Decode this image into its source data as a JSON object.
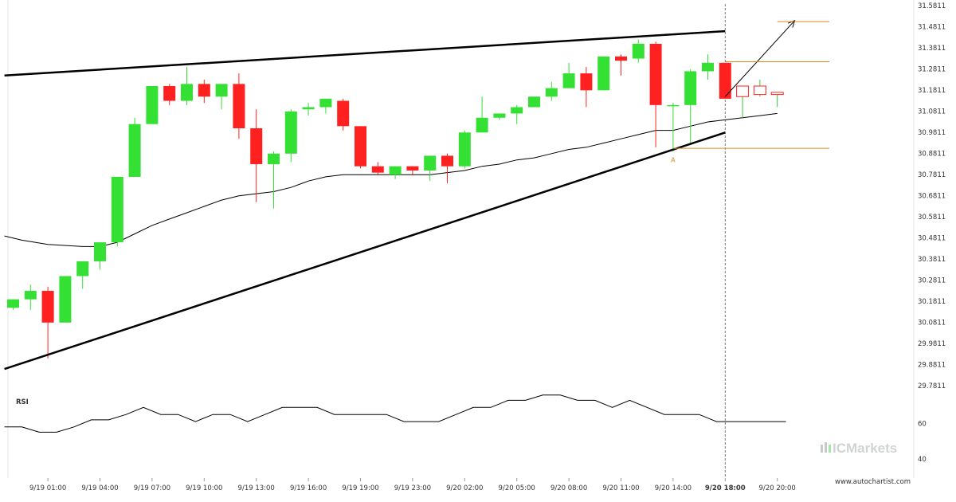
{
  "chart_data": {
    "type": "candlestick",
    "y_axis": {
      "ticks": [
        "31.5811",
        "31.4811",
        "31.3811",
        "31.2811",
        "31.1811",
        "31.0811",
        "30.9811",
        "30.8811",
        "30.7811",
        "30.6811",
        "30.5811",
        "30.4811",
        "30.3811",
        "30.2811",
        "30.1811",
        "30.0811",
        "29.9811",
        "29.8811",
        "29.7811"
      ],
      "ylim": [
        29.7811,
        31.5811
      ]
    },
    "x_axis": {
      "ticks": [
        {
          "i": 2,
          "label": "9/19 01:00"
        },
        {
          "i": 5,
          "label": "9/19 04:00"
        },
        {
          "i": 8,
          "label": "9/19 07:00"
        },
        {
          "i": 11,
          "label": "9/19 10:00"
        },
        {
          "i": 14,
          "label": "9/19 13:00"
        },
        {
          "i": 17,
          "label": "9/19 16:00"
        },
        {
          "i": 20,
          "label": "9/19 19:00"
        },
        {
          "i": 23,
          "label": "9/19 23:00"
        },
        {
          "i": 26,
          "label": "9/20 02:00"
        },
        {
          "i": 29,
          "label": "9/20 05:00"
        },
        {
          "i": 32,
          "label": "9/20 08:00"
        },
        {
          "i": 35,
          "label": "9/20 11:00"
        },
        {
          "i": 38,
          "label": "9/20 14:00"
        },
        {
          "i": 41,
          "label": "9/20 18:00",
          "bold": true
        },
        {
          "i": 44,
          "label": "9/20 20:00"
        }
      ]
    },
    "candles": [
      {
        "o": 30.15,
        "h": 30.19,
        "l": 30.14,
        "c": 30.19
      },
      {
        "o": 30.19,
        "h": 30.26,
        "l": 30.14,
        "c": 30.23
      },
      {
        "o": 30.23,
        "h": 30.25,
        "l": 29.91,
        "c": 30.08
      },
      {
        "o": 30.08,
        "h": 30.3,
        "l": 30.08,
        "c": 30.3
      },
      {
        "o": 30.3,
        "h": 30.37,
        "l": 30.24,
        "c": 30.37
      },
      {
        "o": 30.37,
        "h": 30.46,
        "l": 30.33,
        "c": 30.46
      },
      {
        "o": 30.46,
        "h": 30.77,
        "l": 30.44,
        "c": 30.77
      },
      {
        "o": 30.77,
        "h": 31.05,
        "l": 30.77,
        "c": 31.02
      },
      {
        "o": 31.02,
        "h": 31.2,
        "l": 31.02,
        "c": 31.2
      },
      {
        "o": 31.2,
        "h": 31.21,
        "l": 31.11,
        "c": 31.13
      },
      {
        "o": 31.13,
        "h": 31.29,
        "l": 31.11,
        "c": 31.21
      },
      {
        "o": 31.21,
        "h": 31.23,
        "l": 31.12,
        "c": 31.15
      },
      {
        "o": 31.15,
        "h": 31.21,
        "l": 31.09,
        "c": 31.21
      },
      {
        "o": 31.21,
        "h": 31.26,
        "l": 30.95,
        "c": 31.0
      },
      {
        "o": 31.0,
        "h": 31.09,
        "l": 30.65,
        "c": 30.83
      },
      {
        "o": 30.83,
        "h": 30.89,
        "l": 30.62,
        "c": 30.88
      },
      {
        "o": 30.88,
        "h": 31.09,
        "l": 30.84,
        "c": 31.08
      },
      {
        "o": 31.09,
        "h": 31.12,
        "l": 31.06,
        "c": 31.1
      },
      {
        "o": 31.1,
        "h": 31.14,
        "l": 31.07,
        "c": 31.14
      },
      {
        "o": 31.13,
        "h": 31.14,
        "l": 30.99,
        "c": 31.01
      },
      {
        "o": 31.01,
        "h": 31.01,
        "l": 30.81,
        "c": 30.82
      },
      {
        "o": 30.82,
        "h": 30.84,
        "l": 30.78,
        "c": 30.79
      },
      {
        "o": 30.78,
        "h": 30.82,
        "l": 30.76,
        "c": 30.82
      },
      {
        "o": 30.82,
        "h": 30.82,
        "l": 30.78,
        "c": 30.8
      },
      {
        "o": 30.8,
        "h": 30.87,
        "l": 30.75,
        "c": 30.87
      },
      {
        "o": 30.87,
        "h": 30.88,
        "l": 30.74,
        "c": 30.82
      },
      {
        "o": 30.82,
        "h": 30.99,
        "l": 30.81,
        "c": 30.98
      },
      {
        "o": 30.98,
        "h": 31.15,
        "l": 30.98,
        "c": 31.05
      },
      {
        "o": 31.05,
        "h": 31.07,
        "l": 31.04,
        "c": 31.07
      },
      {
        "o": 31.07,
        "h": 31.11,
        "l": 31.02,
        "c": 31.1
      },
      {
        "o": 31.1,
        "h": 31.15,
        "l": 31.1,
        "c": 31.15
      },
      {
        "o": 31.15,
        "h": 31.22,
        "l": 31.13,
        "c": 31.19
      },
      {
        "o": 31.19,
        "h": 31.31,
        "l": 31.19,
        "c": 31.26
      },
      {
        "o": 31.26,
        "h": 31.29,
        "l": 31.1,
        "c": 31.18
      },
      {
        "o": 31.18,
        "h": 31.34,
        "l": 31.18,
        "c": 31.34
      },
      {
        "o": 31.34,
        "h": 31.35,
        "l": 31.25,
        "c": 31.32
      },
      {
        "o": 31.33,
        "h": 31.42,
        "l": 31.31,
        "c": 31.4
      },
      {
        "o": 31.4,
        "h": 31.41,
        "l": 30.91,
        "c": 31.11
      },
      {
        "o": 31.11,
        "h": 31.12,
        "l": 30.89,
        "c": 31.11
      },
      {
        "o": 31.11,
        "h": 31.28,
        "l": 30.92,
        "c": 31.27
      },
      {
        "o": 31.27,
        "h": 31.35,
        "l": 31.23,
        "c": 31.31
      },
      {
        "o": 31.31,
        "h": 31.31,
        "l": 31.14,
        "c": 31.14
      },
      {
        "o": 31.15,
        "h": 31.2,
        "l": 31.05,
        "c": 31.2,
        "projected": true
      },
      {
        "o": 31.2,
        "h": 31.23,
        "l": 31.15,
        "c": 31.16,
        "projected": true
      },
      {
        "o": 31.16,
        "h": 31.17,
        "l": 31.1,
        "c": 31.17,
        "projected": true
      }
    ],
    "moving_average": [
      {
        "i": -0.5,
        "v": 30.49
      },
      {
        "i": 0.5,
        "v": 30.47
      },
      {
        "i": 2,
        "v": 30.45
      },
      {
        "i": 4,
        "v": 30.44
      },
      {
        "i": 5,
        "v": 30.44
      },
      {
        "i": 6,
        "v": 30.46
      },
      {
        "i": 7,
        "v": 30.5
      },
      {
        "i": 8,
        "v": 30.54
      },
      {
        "i": 9,
        "v": 30.57
      },
      {
        "i": 10,
        "v": 30.6
      },
      {
        "i": 11,
        "v": 30.63
      },
      {
        "i": 12,
        "v": 30.66
      },
      {
        "i": 13,
        "v": 30.68
      },
      {
        "i": 14,
        "v": 30.69
      },
      {
        "i": 15,
        "v": 30.7
      },
      {
        "i": 16,
        "v": 30.72
      },
      {
        "i": 17,
        "v": 30.75
      },
      {
        "i": 18,
        "v": 30.77
      },
      {
        "i": 19,
        "v": 30.78
      },
      {
        "i": 20,
        "v": 30.78
      },
      {
        "i": 21,
        "v": 30.78
      },
      {
        "i": 22,
        "v": 30.78
      },
      {
        "i": 24,
        "v": 30.78
      },
      {
        "i": 25,
        "v": 30.79
      },
      {
        "i": 26,
        "v": 30.8
      },
      {
        "i": 27,
        "v": 30.82
      },
      {
        "i": 28,
        "v": 30.83
      },
      {
        "i": 29,
        "v": 30.85
      },
      {
        "i": 30,
        "v": 30.86
      },
      {
        "i": 31,
        "v": 30.88
      },
      {
        "i": 32,
        "v": 30.9
      },
      {
        "i": 33,
        "v": 30.91
      },
      {
        "i": 34,
        "v": 30.93
      },
      {
        "i": 35,
        "v": 30.95
      },
      {
        "i": 36,
        "v": 30.97
      },
      {
        "i": 37,
        "v": 30.99
      },
      {
        "i": 38,
        "v": 30.99
      },
      {
        "i": 39,
        "v": 31.01
      },
      {
        "i": 40,
        "v": 31.03
      },
      {
        "i": 41,
        "v": 31.04
      },
      {
        "i": 42,
        "v": 31.05
      },
      {
        "i": 43,
        "v": 31.06
      },
      {
        "i": 44,
        "v": 31.07
      }
    ],
    "pattern": {
      "resistance": {
        "from": {
          "i": -0.5,
          "v": 31.25
        },
        "to": {
          "i": 41,
          "v": 31.46
        }
      },
      "support": {
        "from": {
          "i": -0.5,
          "v": 29.86
        },
        "to": {
          "i": 41,
          "v": 30.98
        }
      },
      "projection_arrow": {
        "from": {
          "i": 41,
          "v": 31.15
        },
        "to": {
          "i": 45,
          "v": 31.51
        }
      },
      "levels": [
        {
          "v": 31.505,
          "from_i": 44,
          "to_i": 47
        },
        {
          "v": 31.315,
          "from_i": 41,
          "to_i": 47
        },
        {
          "v": 30.905,
          "from_i": 38,
          "to_i": 47
        }
      ],
      "point_label": {
        "text": "A",
        "i": 38,
        "v": 30.87
      },
      "current_time_index": 41
    },
    "rsi": {
      "label": "RSI",
      "ticks": [
        "60",
        "40"
      ],
      "ylim": [
        30,
        75
      ],
      "values": [
        {
          "i": -0.5,
          "v": 58
        },
        {
          "i": 0.5,
          "v": 58
        },
        {
          "i": 1.5,
          "v": 55
        },
        {
          "i": 2.5,
          "v": 55
        },
        {
          "i": 3.5,
          "v": 58
        },
        {
          "i": 4.5,
          "v": 62
        },
        {
          "i": 5.5,
          "v": 62
        },
        {
          "i": 6.5,
          "v": 65
        },
        {
          "i": 7.5,
          "v": 69
        },
        {
          "i": 8.5,
          "v": 65
        },
        {
          "i": 9.5,
          "v": 65
        },
        {
          "i": 10.5,
          "v": 61
        },
        {
          "i": 11.5,
          "v": 65
        },
        {
          "i": 12.5,
          "v": 65
        },
        {
          "i": 13.5,
          "v": 61
        },
        {
          "i": 14.5,
          "v": 65
        },
        {
          "i": 15.5,
          "v": 69
        },
        {
          "i": 16.5,
          "v": 69
        },
        {
          "i": 17.5,
          "v": 69
        },
        {
          "i": 18.5,
          "v": 65
        },
        {
          "i": 19.5,
          "v": 65
        },
        {
          "i": 20.5,
          "v": 65
        },
        {
          "i": 21.5,
          "v": 65
        },
        {
          "i": 22.5,
          "v": 61
        },
        {
          "i": 23.5,
          "v": 61
        },
        {
          "i": 24.5,
          "v": 61
        },
        {
          "i": 25.5,
          "v": 65
        },
        {
          "i": 26.5,
          "v": 69
        },
        {
          "i": 27.5,
          "v": 69
        },
        {
          "i": 28.5,
          "v": 73
        },
        {
          "i": 29.5,
          "v": 73
        },
        {
          "i": 30.5,
          "v": 76
        },
        {
          "i": 31.5,
          "v": 76
        },
        {
          "i": 32.5,
          "v": 73
        },
        {
          "i": 33.5,
          "v": 73
        },
        {
          "i": 34.5,
          "v": 69
        },
        {
          "i": 35.5,
          "v": 73
        },
        {
          "i": 36.5,
          "v": 69
        },
        {
          "i": 37.5,
          "v": 65
        },
        {
          "i": 38.5,
          "v": 65
        },
        {
          "i": 39.5,
          "v": 65
        },
        {
          "i": 40.5,
          "v": 61
        },
        {
          "i": 41.5,
          "v": 61
        },
        {
          "i": 42.5,
          "v": 61
        },
        {
          "i": 43.5,
          "v": 61
        },
        {
          "i": 44.5,
          "v": 61
        }
      ]
    },
    "colors": {
      "up": "#33e033",
      "down": "#ff2020",
      "projected": "#ff2020",
      "trendline": "#000000",
      "level": "#e08a1e",
      "ma": "#000000",
      "rsi": "#000000"
    }
  },
  "branding": {
    "logo": "ICMarkets",
    "url": "www.autochartist.com"
  }
}
